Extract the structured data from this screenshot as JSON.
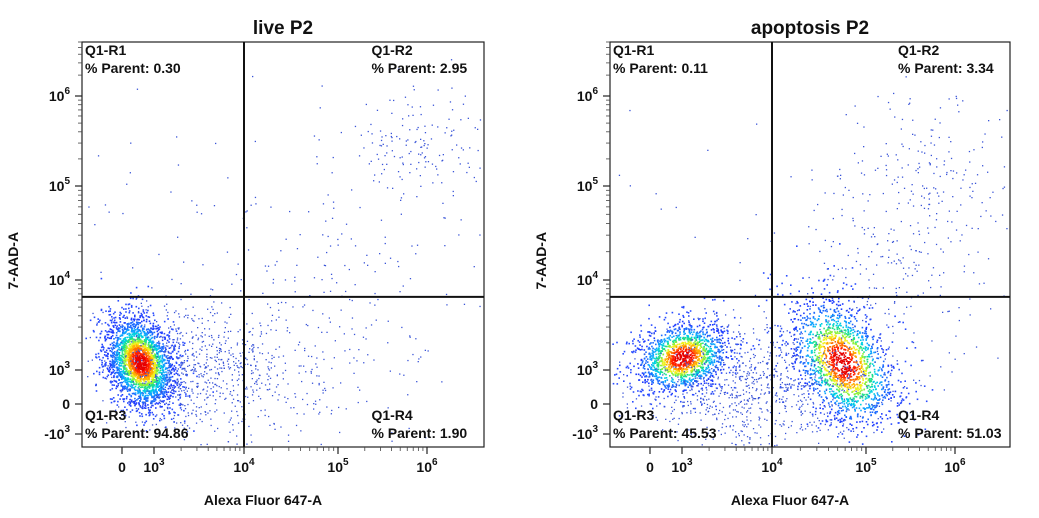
{
  "chart_data": [
    {
      "type": "scatter",
      "title": "live P2",
      "xlabel": "Alexa Fluor 647-A",
      "ylabel": "7-AAD-A",
      "x_scale": "biexponential",
      "y_scale": "biexponential",
      "x_ticks": [
        {
          "value": 0,
          "base": "0",
          "exp": ""
        },
        {
          "value": 1000,
          "base": "10",
          "exp": "3"
        },
        {
          "value": 10000,
          "base": "10",
          "exp": "4"
        },
        {
          "value": 100000,
          "base": "10",
          "exp": "5"
        },
        {
          "value": 1000000,
          "base": "10",
          "exp": "6"
        }
      ],
      "y_ticks": [
        {
          "value": -1000,
          "base": "-10",
          "exp": "3"
        },
        {
          "value": 0,
          "base": "0",
          "exp": ""
        },
        {
          "value": 1000,
          "base": "10",
          "exp": "3"
        },
        {
          "value": 10000,
          "base": "10",
          "exp": "4"
        },
        {
          "value": 100000,
          "base": "10",
          "exp": "5"
        },
        {
          "value": 1000000,
          "base": "10",
          "exp": "6"
        }
      ],
      "gate": {
        "x": 10000,
        "y": 6500
      },
      "quadrants": [
        {
          "name": "Q1-R1",
          "label": "% Parent: 0.30",
          "position": "top-left"
        },
        {
          "name": "Q1-R2",
          "label": "% Parent: 2.95",
          "position": "top-right"
        },
        {
          "name": "Q1-R3",
          "label": "% Parent: 94.86",
          "position": "bottom-left"
        },
        {
          "name": "Q1-R4",
          "label": "% Parent: 1.90",
          "position": "bottom-right"
        }
      ],
      "populations": [
        {
          "x": 600,
          "y": 1100,
          "percent": 94.86
        },
        {
          "x": 300000,
          "y": 250000,
          "percent": 2.95
        },
        {
          "x": 30000,
          "y": 2000,
          "percent": 1.9
        },
        {
          "x": 1000,
          "y": 30000,
          "percent": 0.3
        }
      ]
    },
    {
      "type": "scatter",
      "title": "apoptosis P2",
      "xlabel": "Alexa Fluor 647-A",
      "ylabel": "7-AAD-A",
      "x_scale": "biexponential",
      "y_scale": "biexponential",
      "x_ticks": [
        {
          "value": 0,
          "base": "0",
          "exp": ""
        },
        {
          "value": 1000,
          "base": "10",
          "exp": "3"
        },
        {
          "value": 10000,
          "base": "10",
          "exp": "4"
        },
        {
          "value": 100000,
          "base": "10",
          "exp": "5"
        },
        {
          "value": 1000000,
          "base": "10",
          "exp": "6"
        }
      ],
      "y_ticks": [
        {
          "value": -1000,
          "base": "-10",
          "exp": "3"
        },
        {
          "value": 0,
          "base": "0",
          "exp": ""
        },
        {
          "value": 1000,
          "base": "10",
          "exp": "3"
        },
        {
          "value": 10000,
          "base": "10",
          "exp": "4"
        },
        {
          "value": 100000,
          "base": "10",
          "exp": "5"
        },
        {
          "value": 1000000,
          "base": "10",
          "exp": "6"
        }
      ],
      "gate": {
        "x": 10000,
        "y": 6500
      },
      "quadrants": [
        {
          "name": "Q1-R1",
          "label": "% Parent: 0.11",
          "position": "top-left"
        },
        {
          "name": "Q1-R2",
          "label": "% Parent: 3.34",
          "position": "top-right"
        },
        {
          "name": "Q1-R3",
          "label": "% Parent: 45.53",
          "position": "bottom-left"
        },
        {
          "name": "Q1-R4",
          "label": "% Parent: 51.03",
          "position": "bottom-right"
        }
      ],
      "populations": [
        {
          "x": 900,
          "y": 1400,
          "percent": 45.53
        },
        {
          "x": 55000,
          "y": 1100,
          "percent": 51.03
        },
        {
          "x": 300000,
          "y": 200000,
          "percent": 3.34
        },
        {
          "x": 2000,
          "y": 30000,
          "percent": 0.11
        }
      ]
    }
  ]
}
